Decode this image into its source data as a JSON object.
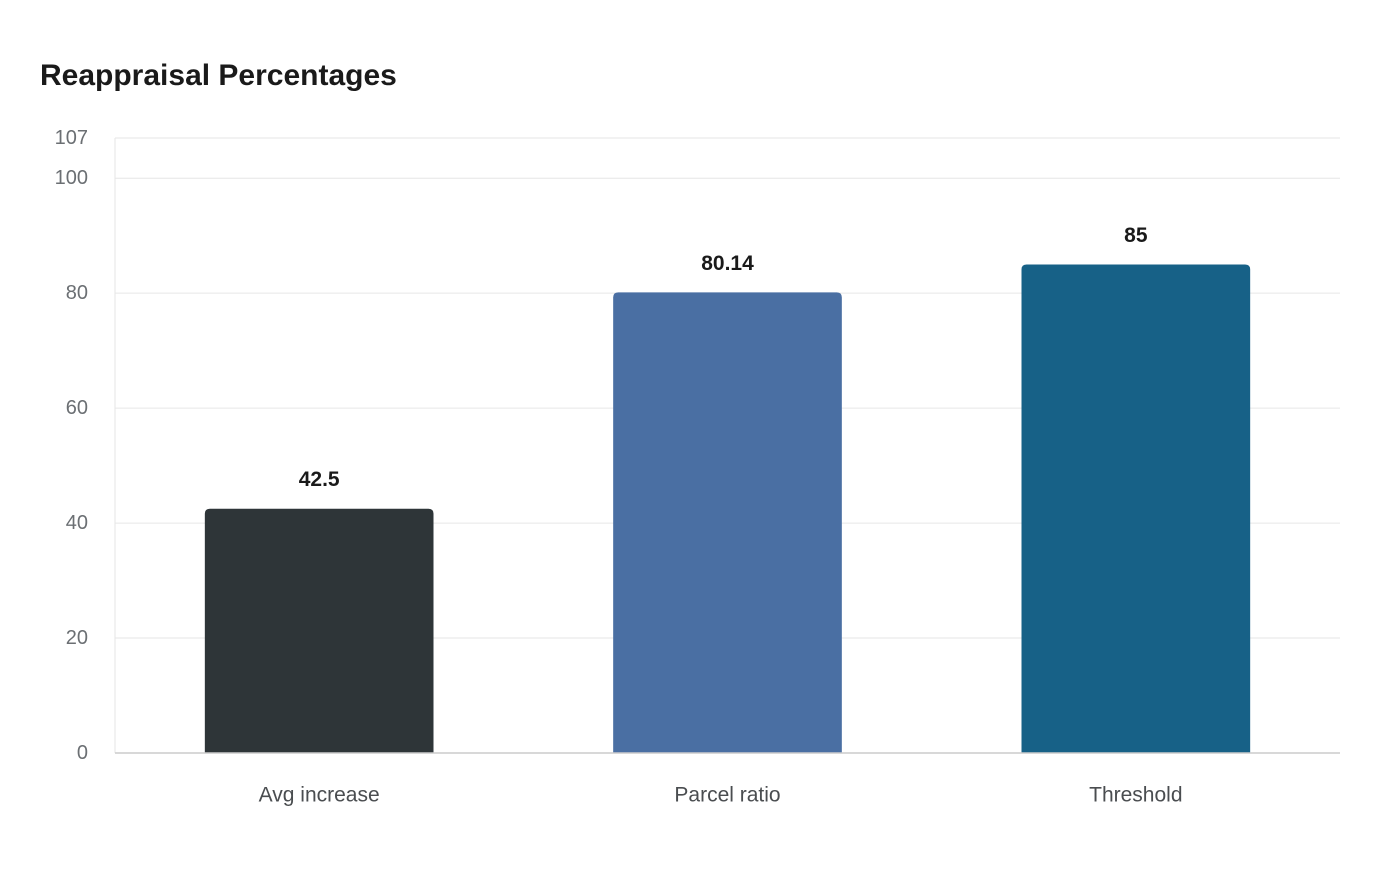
{
  "chart_data": {
    "type": "bar",
    "title": "Reappraisal Percentages",
    "xlabel": "",
    "ylabel": "",
    "categories": [
      "Avg increase",
      "Parcel ratio",
      "Threshold"
    ],
    "values": [
      42.5,
      80.14,
      85
    ],
    "value_labels": [
      "42.5",
      "80.14",
      "85"
    ],
    "colors": [
      "#2e3538",
      "#4a6fa3",
      "#176187"
    ],
    "ylim": [
      0,
      107
    ],
    "yticks": [
      0,
      20,
      40,
      60,
      80,
      100,
      107
    ],
    "grid": true,
    "legend": "none"
  }
}
